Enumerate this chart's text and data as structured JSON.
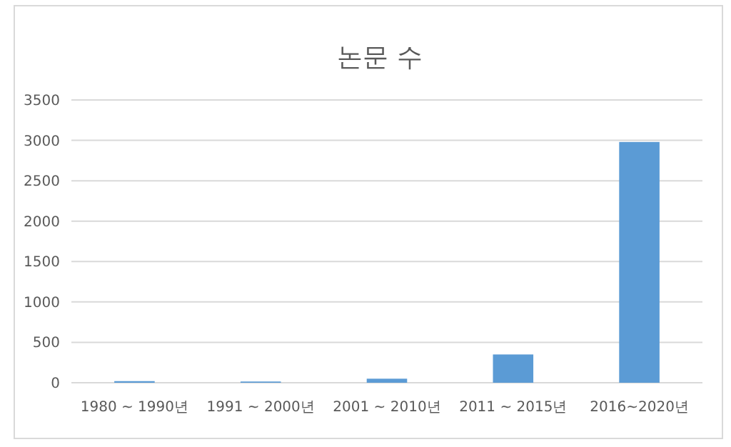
{
  "chart_data": {
    "type": "bar",
    "title": "논문 수",
    "categories": [
      "1980 ~ 1990년",
      "1991 ~ 2000년",
      "2001 ~ 2010년",
      "2011 ~ 2015년",
      "2016~2020년"
    ],
    "values": [
      20,
      15,
      50,
      350,
      2980
    ],
    "color": "#5b9bd5",
    "ylim": [
      0,
      3500
    ],
    "yticks": [
      0,
      500,
      1000,
      1500,
      2000,
      2500,
      3000,
      3500
    ],
    "grid": "y"
  }
}
